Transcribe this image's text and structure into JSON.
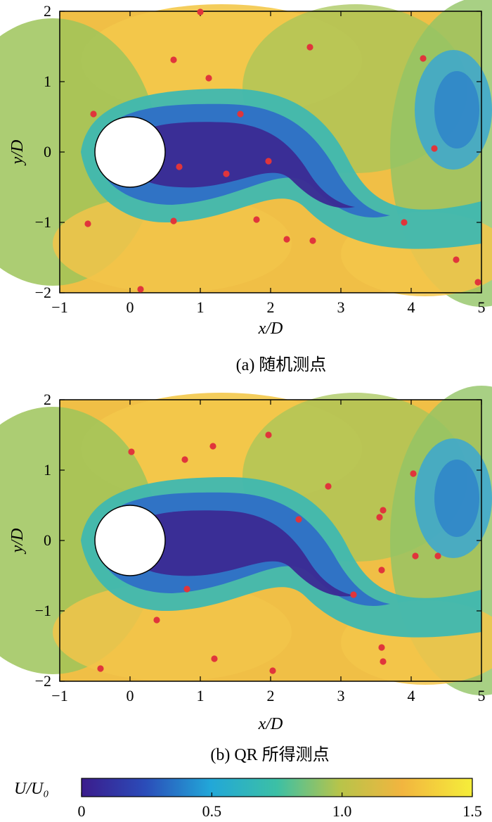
{
  "chart_data": [
    {
      "type": "scatter",
      "caption": "(a)  随机测点",
      "xlabel": "x/D",
      "ylabel": "y/D",
      "xlim": [
        -1,
        5
      ],
      "ylim": [
        -2,
        2
      ],
      "xticks": [
        "−1",
        "0",
        "1",
        "2",
        "3",
        "4",
        "5"
      ],
      "yticks": [
        "−2",
        "−1",
        "0",
        "1",
        "2"
      ],
      "background": "heatmap of U/U0 (flow past cylinder)",
      "series": [
        {
          "points": [
            [
              -0.6,
              -1.02
            ],
            [
              -0.52,
              0.54
            ],
            [
              0.15,
              -1.95
            ],
            [
              0.62,
              1.31
            ],
            [
              0.62,
              -0.98
            ],
            [
              0.7,
              -0.21
            ],
            [
              1.0,
              1.99
            ],
            [
              1.12,
              1.05
            ],
            [
              1.37,
              -0.31
            ],
            [
              1.57,
              0.54
            ],
            [
              1.8,
              -0.96
            ],
            [
              1.97,
              -0.13
            ],
            [
              2.23,
              -1.24
            ],
            [
              2.56,
              1.49
            ],
            [
              2.6,
              -1.26
            ],
            [
              3.9,
              -1.0
            ],
            [
              4.17,
              1.33
            ],
            [
              4.33,
              0.05
            ],
            [
              4.64,
              -1.53
            ],
            [
              4.95,
              -1.85
            ]
          ]
        }
      ]
    },
    {
      "type": "scatter",
      "caption": "(b)  QR 所得测点",
      "xlabel": "x/D",
      "ylabel": "y/D",
      "xlim": [
        -1,
        5
      ],
      "ylim": [
        -2,
        2
      ],
      "xticks": [
        "−1",
        "0",
        "1",
        "2",
        "3",
        "4",
        "5"
      ],
      "yticks": [
        "−2",
        "−1",
        "0",
        "1",
        "2"
      ],
      "background": "heatmap of U/U0 (flow past cylinder)",
      "series": [
        {
          "points": [
            [
              -0.42,
              -1.82
            ],
            [
              0.02,
              1.26
            ],
            [
              0.38,
              -1.13
            ],
            [
              0.78,
              1.15
            ],
            [
              0.81,
              -0.69
            ],
            [
              1.18,
              1.34
            ],
            [
              1.2,
              -1.68
            ],
            [
              1.97,
              1.5
            ],
            [
              2.03,
              -1.85
            ],
            [
              2.4,
              0.3
            ],
            [
              2.82,
              0.77
            ],
            [
              3.18,
              -0.77
            ],
            [
              3.55,
              0.33
            ],
            [
              3.58,
              -0.42
            ],
            [
              3.6,
              0.43
            ],
            [
              3.58,
              -1.52
            ],
            [
              3.6,
              -1.72
            ],
            [
              4.03,
              0.95
            ],
            [
              4.06,
              -0.22
            ],
            [
              4.38,
              -0.22
            ]
          ]
        }
      ]
    }
  ],
  "colorbar": {
    "label": "U/U₀",
    "ticks": [
      "0",
      "0.5",
      "1.0",
      "1.5"
    ],
    "range": [
      0,
      1.5
    ],
    "colors": [
      "#3b1c8c",
      "#2a63c8",
      "#22a7d8",
      "#3cc0a5",
      "#a6c84e",
      "#f2b53f",
      "#f5e93a"
    ]
  },
  "marker_color": "#e0353b"
}
